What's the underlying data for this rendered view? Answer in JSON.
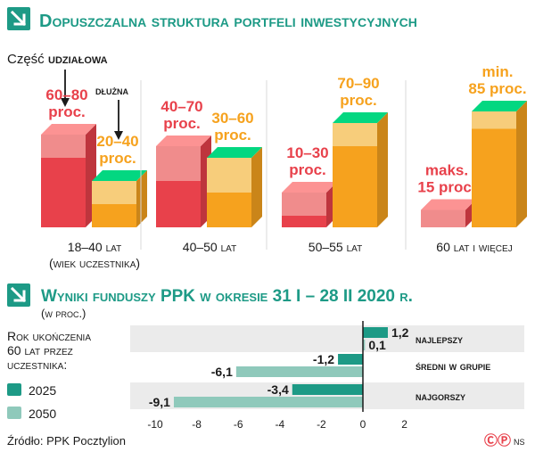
{
  "colors": {
    "teal": "#1d9a86",
    "teal_light": "#8fc9bb",
    "red": "#e8414b",
    "red_light": "#f08c8c",
    "orange": "#f6a21e",
    "orange_light": "#f7cd7b",
    "band": "#ebebeb",
    "text_dark": "#1a1a1a"
  },
  "section1": {
    "icon": "arrow-down-right-icon",
    "title": "Dopuszczalna struktura portfeli inwestycyjnych",
    "legend_prefix": "Część",
    "legend_equity": "udziałowa",
    "legend_debt": "dłużna"
  },
  "chart_data": [
    {
      "type": "bar",
      "title": "Dopuszczalna struktura portfeli inwestycyjnych",
      "categories": [
        "18–40 lat (wiek uczestnika)",
        "40–50 lat",
        "50–55 lat",
        "60 lat i więcej"
      ],
      "category_lines": [
        [
          "18–40 lat",
          "(wiek uczestnika)"
        ],
        [
          "40–50 lat"
        ],
        [
          "50–55 lat"
        ],
        [
          "60 lat i więcej"
        ]
      ],
      "series": [
        {
          "name": "udziałowa",
          "color": "#e8414b",
          "range_low": [
            60,
            40,
            10,
            0
          ],
          "range_high": [
            80,
            70,
            30,
            15
          ],
          "labels": [
            [
              "60–80",
              "proc."
            ],
            [
              "40–70",
              "proc."
            ],
            [
              "10–30",
              "proc."
            ],
            [
              "maks.",
              "15 proc."
            ]
          ]
        },
        {
          "name": "dłużna",
          "color": "#f6a21e",
          "range_low": [
            20,
            30,
            70,
            85
          ],
          "range_high": [
            40,
            60,
            90,
            100
          ],
          "labels": [
            [
              "20–40",
              "proc."
            ],
            [
              "30–60",
              "proc."
            ],
            [
              "70–90",
              "proc."
            ],
            [
              "min.",
              "85 proc."
            ]
          ]
        }
      ],
      "ylim": [
        0,
        100
      ]
    },
    {
      "type": "bar",
      "orientation": "horizontal",
      "title": "Wyniki funduszy PPK w okresie 31 I – 28 II 2020 r.",
      "subtitle": "(w proc.)",
      "categories": [
        "najlepszy",
        "średni w grupie",
        "najgorszy"
      ],
      "series": [
        {
          "name": "2025",
          "color": "#1d9a86",
          "values": [
            1.2,
            -1.2,
            -3.4
          ],
          "labels": [
            "1,2",
            "-1,2",
            "-3,4"
          ]
        },
        {
          "name": "2050",
          "color": "#8fc9bb",
          "values": [
            0.1,
            -6.1,
            -9.1
          ],
          "labels": [
            "0,1",
            "-6,1",
            "-9,1"
          ]
        }
      ],
      "xlim": [
        -10,
        2
      ],
      "xticks": [
        -10,
        -8,
        -6,
        -4,
        -2,
        0,
        2
      ],
      "xtick_labels": [
        "-10",
        "-8",
        "-6",
        "-4",
        "-2",
        "0",
        "2"
      ],
      "legend_title": [
        "Rok ukończenia",
        "60 lat przez",
        "uczestnika:"
      ],
      "legend_placement": "left"
    }
  ],
  "section2": {
    "icon": "arrow-down-right-icon",
    "title": "Wyniki funduszy PPK w okresie 31 I – 28 II 2020 r.",
    "subtitle": "(w proc.)"
  },
  "footer": {
    "source": "Źródło: PPK Pocztylion",
    "logo_text": "ⒸⓅ",
    "initials": "NS"
  }
}
